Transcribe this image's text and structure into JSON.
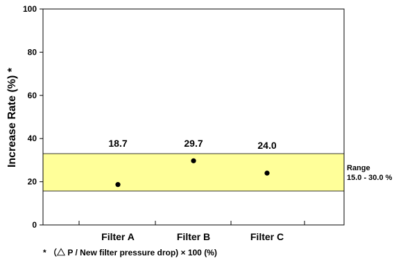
{
  "chart_data": {
    "type": "scatter",
    "categories": [
      "Filter A",
      "Filter B",
      "Filter C"
    ],
    "values": [
      18.7,
      29.7,
      24.0
    ],
    "data_labels": [
      "18.7",
      "29.7",
      "24.0"
    ],
    "ylabel": "Increase Rate (%) *",
    "ylim": [
      0,
      100
    ],
    "yticks": [
      0,
      20,
      40,
      60,
      80,
      100
    ],
    "range_band": {
      "low": 15.0,
      "high": 30.0,
      "color": "#ffff99",
      "label_line1": "Range",
      "label_line2": "15.0 - 30.0 %"
    },
    "grid": false,
    "marker_color": "#000000"
  },
  "footnote": "* （△ P / New filter pressure drop) × 100 (%)"
}
